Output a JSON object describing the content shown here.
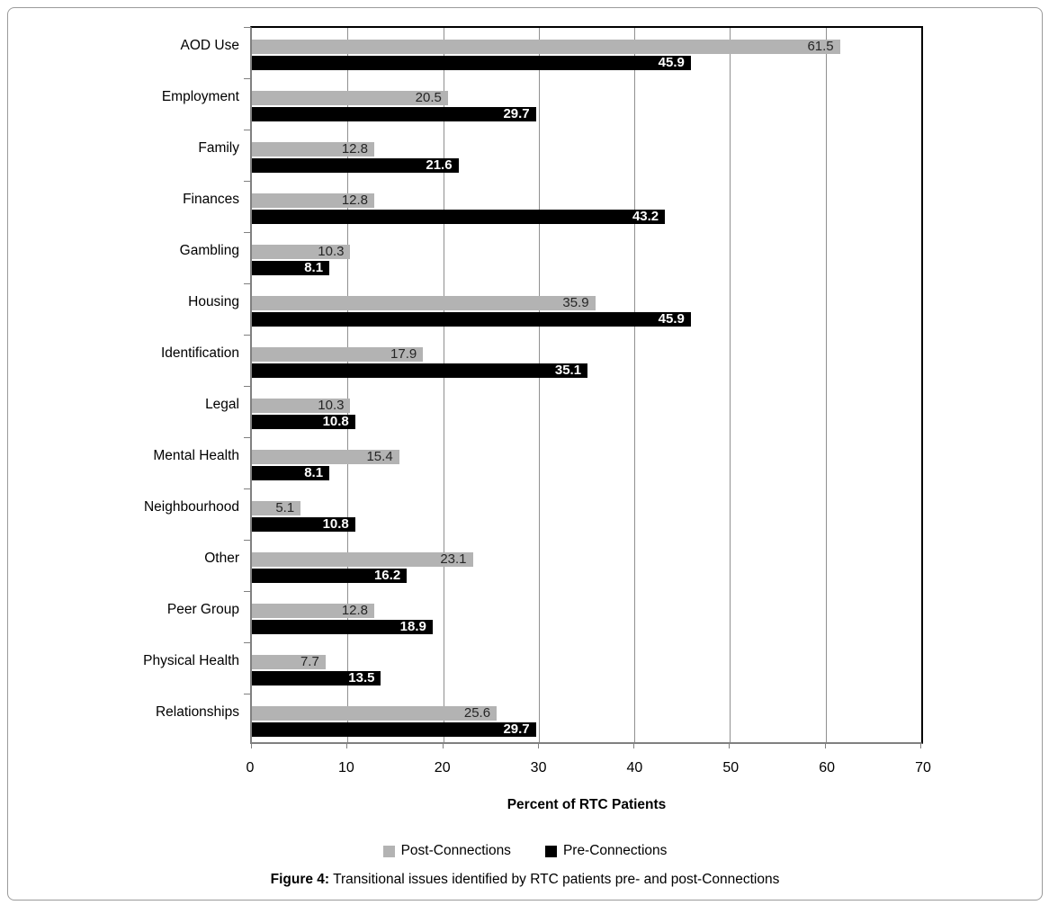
{
  "chart_data": {
    "type": "bar",
    "orientation": "horizontal",
    "title": "",
    "xlabel": "Percent of RTC Patients",
    "ylabel": "",
    "xlim": [
      0,
      70
    ],
    "xticks": [
      0,
      10,
      20,
      30,
      40,
      50,
      60,
      70
    ],
    "grid": "vertical",
    "legend_position": "bottom",
    "categories": [
      "AOD Use",
      "Employment",
      "Family",
      "Finances",
      "Gambling",
      "Housing",
      "Identification",
      "Legal",
      "Mental Health",
      "Neighbourhood",
      "Other",
      "Peer Group",
      "Physical Health",
      "Relationships"
    ],
    "series": [
      {
        "name": "Post-Connections",
        "color": "#b3b3b3",
        "label_color": "#262626",
        "values": [
          61.5,
          20.5,
          12.8,
          12.8,
          10.3,
          35.9,
          17.9,
          10.3,
          15.4,
          5.1,
          23.1,
          12.8,
          7.7,
          25.6
        ]
      },
      {
        "name": "Pre-Connections",
        "color": "#000000",
        "label_color": "#ffffff",
        "values": [
          45.9,
          29.7,
          21.6,
          43.2,
          8.1,
          45.9,
          35.1,
          10.8,
          8.1,
          10.8,
          16.2,
          18.9,
          13.5,
          29.7
        ]
      }
    ]
  },
  "caption": {
    "prefix": "Figure 4:",
    "text": "Transitional issues identified by RTC patients pre- and post-Connections"
  }
}
